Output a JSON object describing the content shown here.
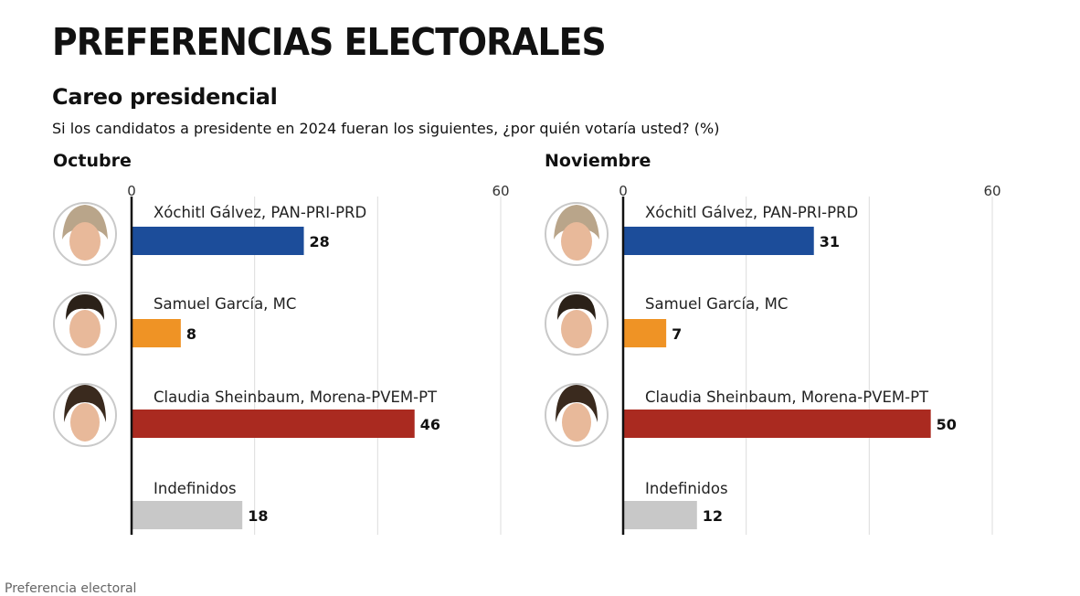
{
  "title": "PREFERENCIAS ELECTORALES",
  "subtitle": "Careo presidencial",
  "question": "Si los candidatos a presidente en 2024 fueran los siguientes, ¿por quién votaría usted? (%)",
  "footer_partial_text": "Preferencia electoral",
  "colors": {
    "galvez": "#1c4d9a",
    "garcia": "#ef9325",
    "sheinbaum": "#aa2a20",
    "indefinidos": "#c8c8c8"
  },
  "chart_data": [
    {
      "type": "bar",
      "orientation": "horizontal",
      "title": "Octubre",
      "xlim": [
        0,
        60
      ],
      "tick_labels": [
        "0",
        "60"
      ],
      "grid": true,
      "categories": [
        "Xóchitl Gálvez, PAN-PRI-PRD",
        "Samuel García, MC",
        "Claudia Sheinbaum, Morena-PVEM-PT",
        "Indefinidos"
      ],
      "values": [
        28,
        8,
        46,
        18
      ]
    },
    {
      "type": "bar",
      "orientation": "horizontal",
      "title": "Noviembre",
      "xlim": [
        0,
        60
      ],
      "tick_labels": [
        "0",
        "60"
      ],
      "grid": true,
      "categories": [
        "Xóchitl Gálvez, PAN-PRI-PRD",
        "Samuel García, MC",
        "Claudia Sheinbaum, Morena-PVEM-PT",
        "Indefinidos"
      ],
      "values": [
        31,
        7,
        50,
        12
      ]
    }
  ]
}
